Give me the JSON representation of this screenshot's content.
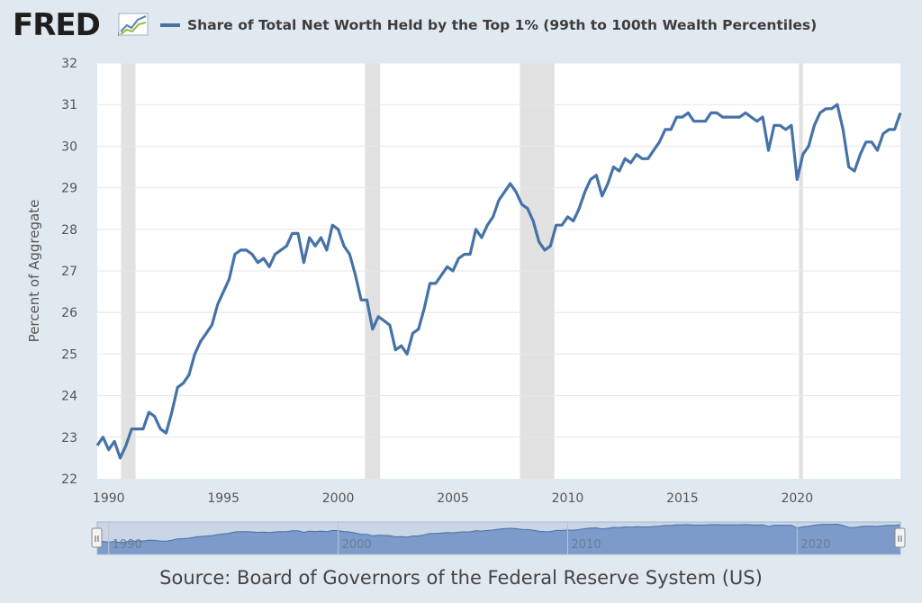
{
  "header": {
    "logo_text": "FRED",
    "logo_symbol": "®"
  },
  "chart_data": {
    "type": "line",
    "title": "Share of Total Net Worth Held by the Top 1% (99th to 100th Wealth Percentiles)",
    "ylabel": "Percent of Aggregate",
    "xlabel": "",
    "ylim": [
      22,
      32
    ],
    "xlim": [
      1989.5,
      2024.5
    ],
    "yticks": [
      22,
      23,
      24,
      25,
      26,
      27,
      28,
      29,
      30,
      31,
      32
    ],
    "xticks": [
      1990,
      1995,
      2000,
      2005,
      2010,
      2015,
      2020
    ],
    "grid": true,
    "legend_position": "top-left",
    "series_color": "#4572a7",
    "recessions": [
      {
        "start": 1990.54,
        "end": 1991.17
      },
      {
        "start": 2001.17,
        "end": 2001.83
      },
      {
        "start": 2007.92,
        "end": 2009.42
      },
      {
        "start": 2020.08,
        "end": 2020.25
      }
    ],
    "series": [
      {
        "name": "Share of Total Net Worth Held by the Top 1% (99th to 100th Wealth Percentiles)",
        "start_year": 1989.5,
        "step_years": 0.25,
        "values": [
          22.8,
          23.0,
          22.7,
          22.9,
          22.5,
          22.8,
          23.2,
          23.2,
          23.2,
          23.6,
          23.5,
          23.2,
          23.1,
          23.6,
          24.2,
          24.3,
          24.5,
          25.0,
          25.3,
          25.5,
          25.7,
          26.2,
          26.5,
          26.8,
          27.4,
          27.5,
          27.5,
          27.4,
          27.2,
          27.3,
          27.1,
          27.4,
          27.5,
          27.6,
          27.9,
          27.9,
          27.2,
          27.8,
          27.6,
          27.8,
          27.5,
          28.1,
          28.0,
          27.6,
          27.4,
          26.9,
          26.3,
          26.3,
          25.6,
          25.9,
          25.8,
          25.7,
          25.1,
          25.2,
          25.0,
          25.5,
          25.6,
          26.1,
          26.7,
          26.7,
          26.9,
          27.1,
          27.0,
          27.3,
          27.4,
          27.4,
          28.0,
          27.8,
          28.1,
          28.3,
          28.7,
          28.9,
          29.1,
          28.9,
          28.6,
          28.5,
          28.2,
          27.7,
          27.5,
          27.6,
          28.1,
          28.1,
          28.3,
          28.2,
          28.5,
          28.9,
          29.2,
          29.3,
          28.8,
          29.1,
          29.5,
          29.4,
          29.7,
          29.6,
          29.8,
          29.7,
          29.7,
          29.9,
          30.1,
          30.4,
          30.4,
          30.7,
          30.7,
          30.8,
          30.6,
          30.6,
          30.6,
          30.8,
          30.8,
          30.7,
          30.7,
          30.7,
          30.7,
          30.8,
          30.7,
          30.6,
          30.7,
          29.9,
          30.5,
          30.5,
          30.4,
          30.5,
          29.2,
          29.8,
          30.0,
          30.5,
          30.8,
          30.9,
          30.9,
          31.0,
          30.4,
          29.5,
          29.4,
          29.8,
          30.1,
          30.1,
          29.9,
          30.3,
          30.4,
          30.4,
          30.8
        ]
      }
    ]
  },
  "navigator": {
    "ticks": [
      "1990",
      "2000",
      "2010",
      "2020"
    ],
    "handle_glyph": "II"
  },
  "source": "Source: Board of Governors of the Federal Reserve System (US)"
}
